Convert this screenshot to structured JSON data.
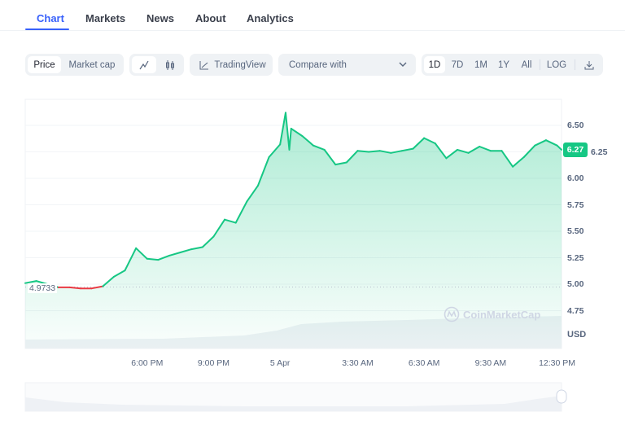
{
  "tabs": [
    "Chart",
    "Markets",
    "News",
    "About",
    "Analytics"
  ],
  "active_tab": "Chart",
  "toolbar": {
    "price": "Price",
    "market_cap": "Market cap",
    "line_icon": "line-chart-icon",
    "candle_icon": "candlestick-icon",
    "tradingview": "TradingView",
    "compare": "Compare with",
    "ranges": [
      "1D",
      "7D",
      "1M",
      "1Y",
      "All"
    ],
    "selected_range": "1D",
    "log": "LOG",
    "download_icon": "download-icon"
  },
  "watermark": "CoinMarketCap",
  "colors": {
    "up": "#16c784",
    "down": "#ea3943",
    "accent": "#3861fb"
  },
  "chart_data": {
    "type": "area",
    "currency": "USD",
    "reference_value": 4.9733,
    "reference_label": "4.9733",
    "current_value": 6.27,
    "current_label": "6.27",
    "ylim": [
      4.6,
      6.7
    ],
    "yticks": [
      "6.50",
      "6.25",
      "6.00",
      "5.75",
      "5.50",
      "5.25",
      "5.00",
      "4.75"
    ],
    "ytick_values": [
      6.5,
      6.25,
      6.0,
      5.75,
      5.5,
      5.25,
      5.0,
      4.75
    ],
    "xticks": [
      "6:00 PM",
      "9:00 PM",
      "5 Apr",
      "3:30 AM",
      "6:30 AM",
      "9:30 AM",
      "12:30 PM"
    ],
    "xtick_times": [
      "4 18:00",
      "4 21:00",
      "5 00:00",
      "5 03:30",
      "5 06:30",
      "5 09:30",
      "5 12:30"
    ],
    "xlim": [
      "4 12:30",
      "5 12:42"
    ],
    "grid": true,
    "x": [
      "4 12:30",
      "4 13:00",
      "4 13:30",
      "4 14:00",
      "4 14:30",
      "4 15:00",
      "4 15:30",
      "4 16:00",
      "4 16:30",
      "4 17:00",
      "4 17:30",
      "4 18:00",
      "4 18:30",
      "4 19:00",
      "4 19:30",
      "4 20:00",
      "4 20:30",
      "4 21:00",
      "4 21:30",
      "4 22:00",
      "4 22:30",
      "4 23:00",
      "4 23:30",
      "5 00:00",
      "5 00:15",
      "5 00:25",
      "5 00:30",
      "5 01:00",
      "5 01:30",
      "5 02:00",
      "5 02:30",
      "5 03:00",
      "5 03:30",
      "5 04:00",
      "5 04:30",
      "5 05:00",
      "5 05:30",
      "5 06:00",
      "5 06:30",
      "5 07:00",
      "5 07:30",
      "5 08:00",
      "5 08:30",
      "5 09:00",
      "5 09:30",
      "5 10:00",
      "5 10:30",
      "5 11:00",
      "5 11:30",
      "5 12:00",
      "5 12:30",
      "5 12:42"
    ],
    "values": [
      5.01,
      5.03,
      5.0,
      4.97,
      4.97,
      4.96,
      4.96,
      4.98,
      5.07,
      5.13,
      5.34,
      5.24,
      5.23,
      5.27,
      5.3,
      5.33,
      5.35,
      5.45,
      5.61,
      5.58,
      5.78,
      5.93,
      6.2,
      6.32,
      6.62,
      6.27,
      6.47,
      6.4,
      6.31,
      6.27,
      6.13,
      6.15,
      6.26,
      6.25,
      6.26,
      6.24,
      6.26,
      6.28,
      6.38,
      6.33,
      6.19,
      6.27,
      6.24,
      6.3,
      6.26,
      6.26,
      6.11,
      6.2,
      6.31,
      6.36,
      6.31,
      6.27
    ]
  }
}
